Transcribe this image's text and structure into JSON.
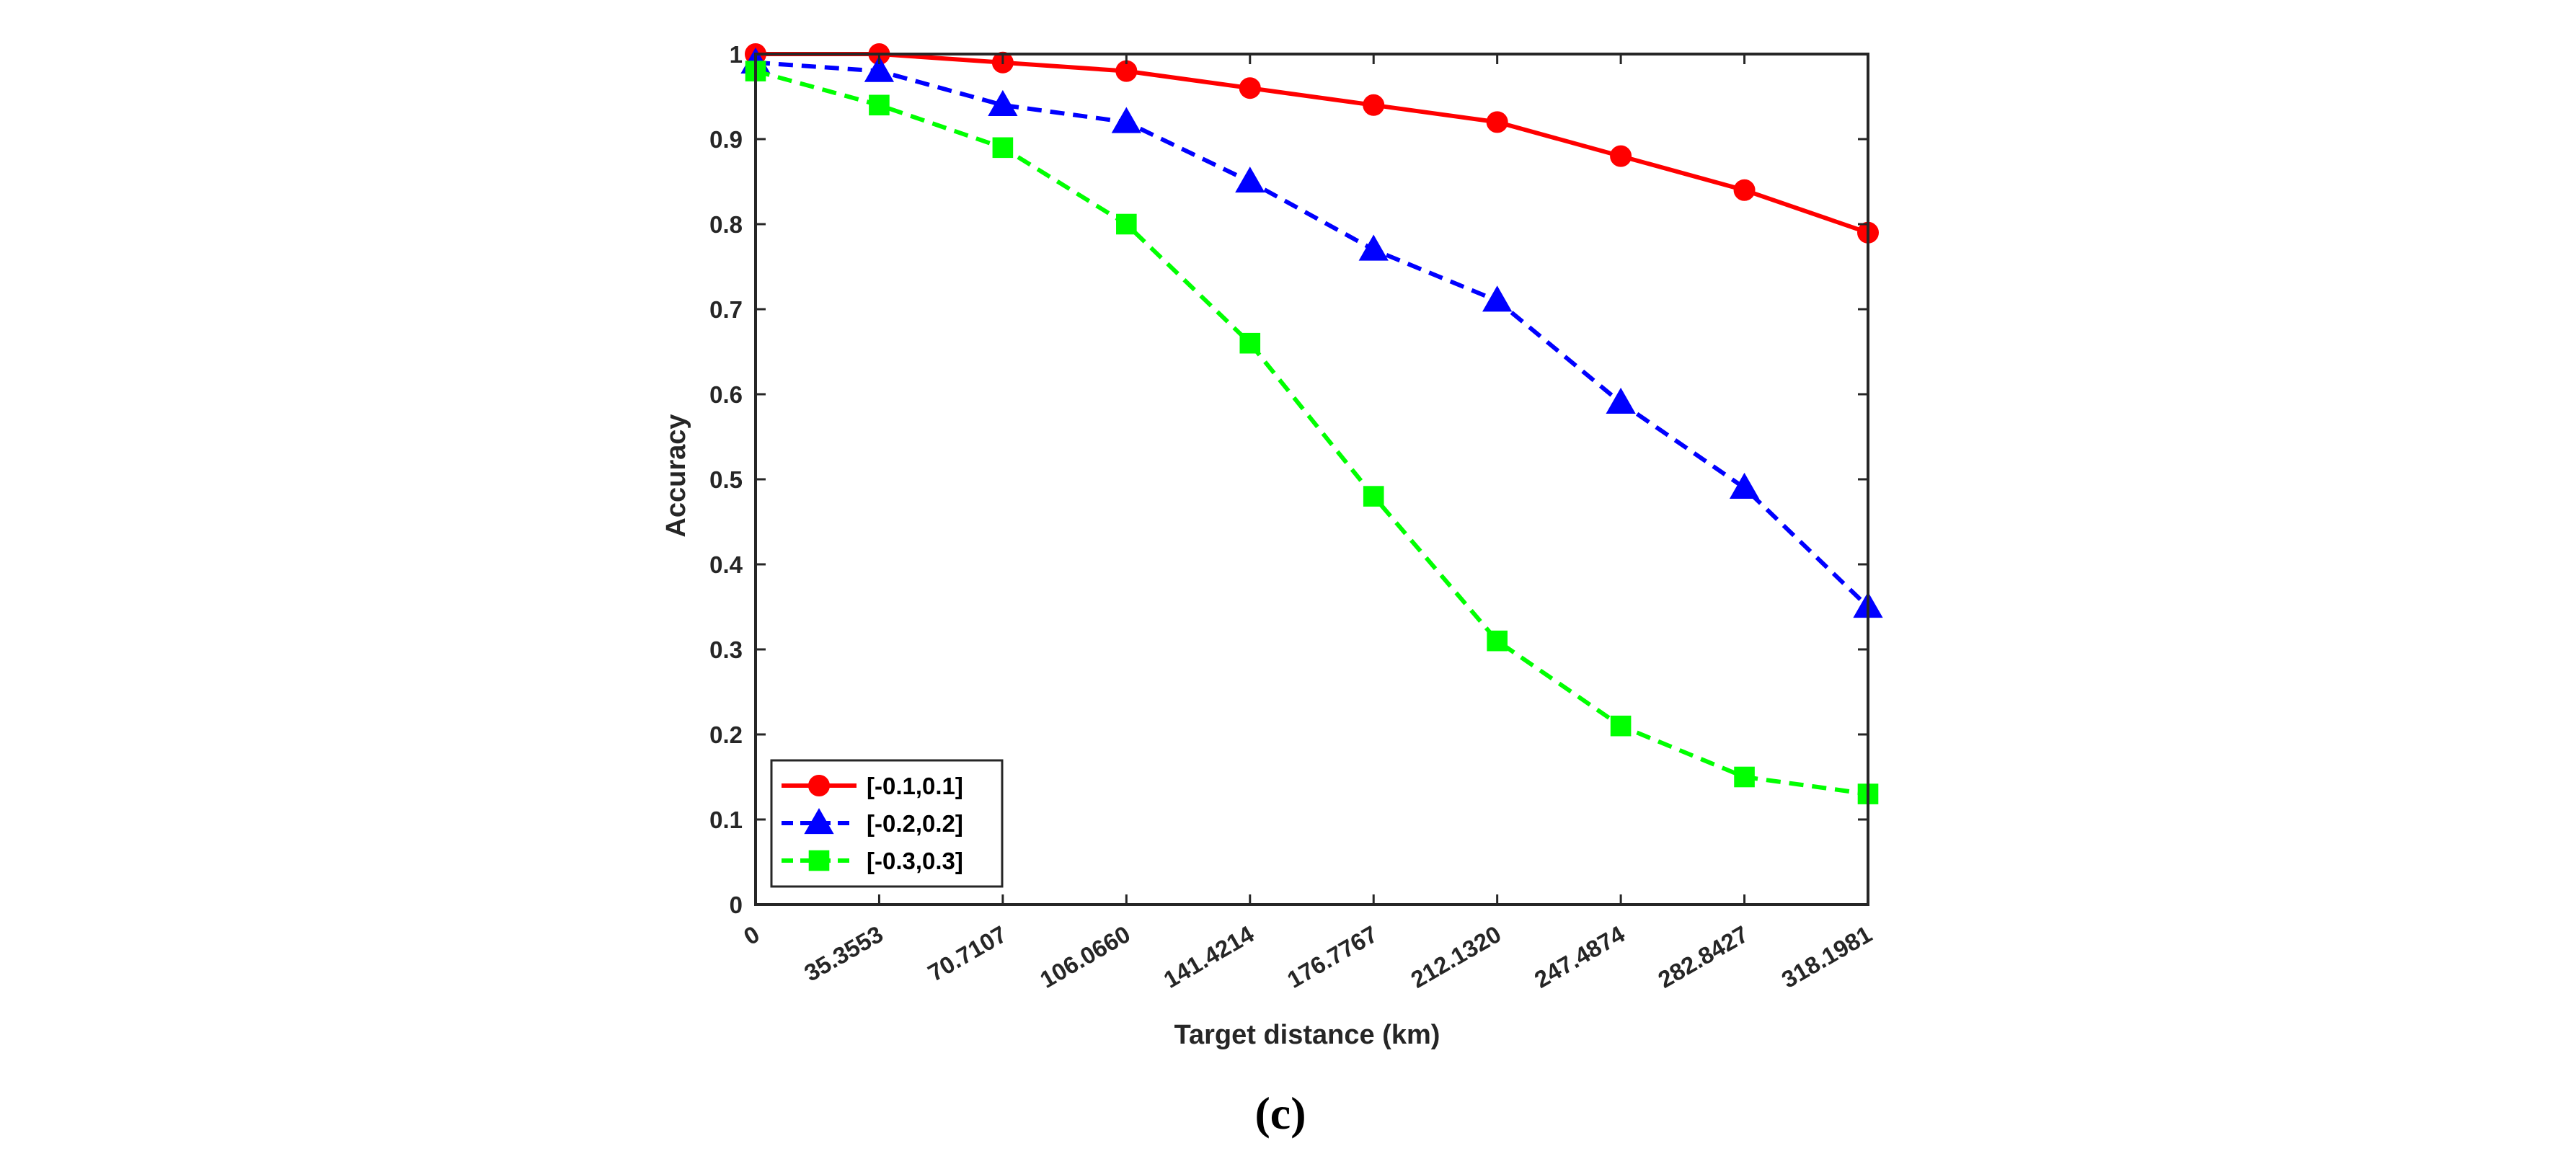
{
  "chart_data": {
    "type": "line",
    "title": "",
    "xlabel": "Target distance (km)",
    "ylabel": "Accuracy",
    "caption": "(c)",
    "categories": [
      "0",
      "35.3553",
      "70.7107",
      "106.0660",
      "141.4214",
      "176.7767",
      "212.1320",
      "247.4874",
      "282.8427",
      "318.1981"
    ],
    "x": [
      0,
      35.3553,
      70.7107,
      106.066,
      141.4214,
      176.7767,
      212.132,
      247.4874,
      282.8427,
      318.1981
    ],
    "xlim": [
      0,
      318.1981
    ],
    "ylim": [
      0,
      1
    ],
    "yticks": [
      0,
      0.1,
      0.2,
      0.3,
      0.4,
      0.5,
      0.6,
      0.7,
      0.8,
      0.9,
      1
    ],
    "ytick_labels": [
      "0",
      "0.1",
      "0.2",
      "0.3",
      "0.4",
      "0.5",
      "0.6",
      "0.7",
      "0.8",
      "0.9",
      "1"
    ],
    "grid": false,
    "legend_position": "bottom-left",
    "series": [
      {
        "name": "[-0.1,0.1]",
        "values": [
          1.0,
          1.0,
          0.99,
          0.98,
          0.96,
          0.94,
          0.92,
          0.88,
          0.84,
          0.79
        ],
        "color": "#ff0000",
        "line_style": "solid",
        "marker": "circle"
      },
      {
        "name": "[-0.2,0.2]",
        "values": [
          0.99,
          0.98,
          0.94,
          0.92,
          0.85,
          0.77,
          0.71,
          0.59,
          0.49,
          0.35
        ],
        "color": "#0000ff",
        "line_style": "dashed",
        "marker": "triangle"
      },
      {
        "name": "[-0.3,0.3]",
        "values": [
          0.98,
          0.94,
          0.89,
          0.8,
          0.66,
          0.48,
          0.31,
          0.21,
          0.15,
          0.13
        ],
        "color": "#00ff00",
        "line_style": "dashed",
        "marker": "square"
      }
    ]
  }
}
